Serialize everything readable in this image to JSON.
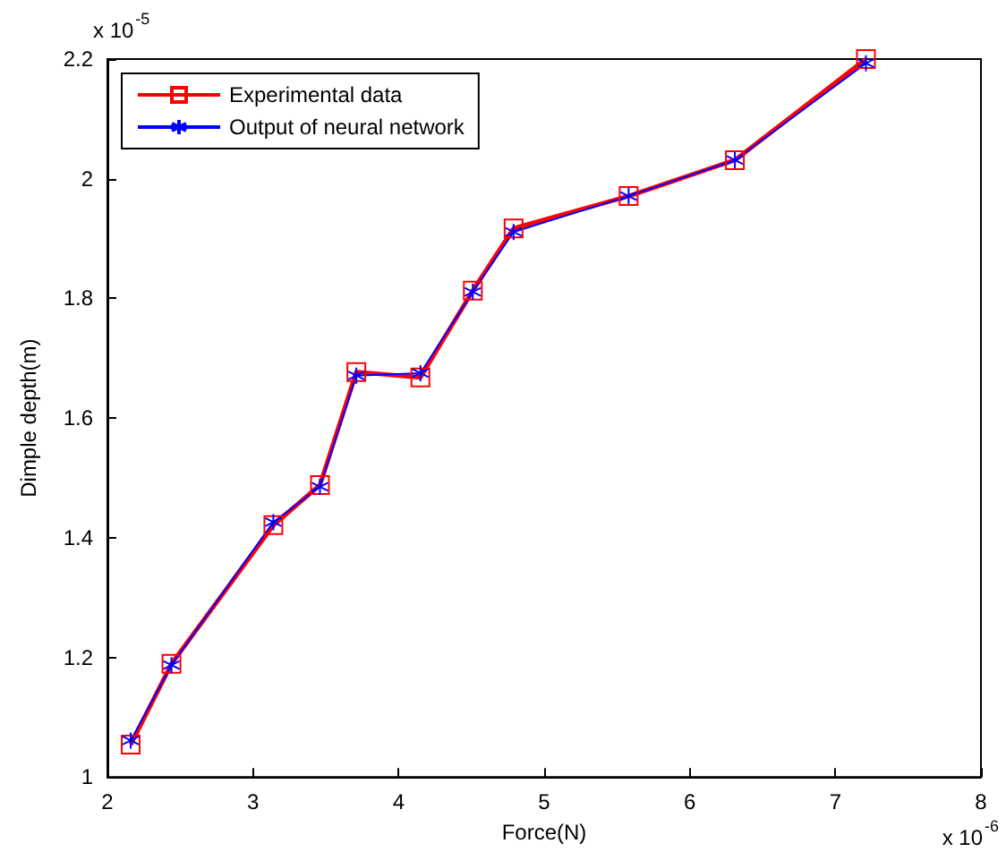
{
  "chart_data": {
    "type": "line",
    "xlabel": "Force(N)",
    "ylabel": "Dimple depth(m)",
    "annotations": [
      "x 10$^{-5}$",
      "x 10$^{-6}$"
    ],
    "xlim": [
      2,
      8
    ],
    "xticks": [
      2,
      3,
      4,
      5,
      6,
      7,
      8
    ],
    "ylim": [
      1,
      2.2
    ],
    "yticks": [
      1,
      1.2,
      1.4,
      1.6,
      1.8,
      2,
      2.2
    ],
    "grid": false,
    "legend": "top left",
    "series": [
      {
        "name": "Experimental data",
        "color": "#ff0000",
        "marker": "square",
        "x": [
          2.16,
          2.44,
          3.14,
          3.46,
          3.71,
          4.15,
          4.51,
          4.79,
          5.58,
          6.31,
          7.21
        ],
        "values": [
          1.054,
          1.189,
          1.421,
          1.488,
          1.677,
          1.668,
          1.813,
          1.917,
          1.971,
          2.031,
          2.2
        ]
      },
      {
        "name": "Output of neural network",
        "color": "#0000ff",
        "marker": "cross",
        "x": [
          2.16,
          2.44,
          3.14,
          3.46,
          3.71,
          4.15,
          4.51,
          4.79,
          5.58,
          6.31,
          7.21
        ],
        "values": [
          1.061,
          1.187,
          1.426,
          1.485,
          1.671,
          1.675,
          1.811,
          1.911,
          1.971,
          2.031,
          2.193
        ]
      }
    ]
  }
}
